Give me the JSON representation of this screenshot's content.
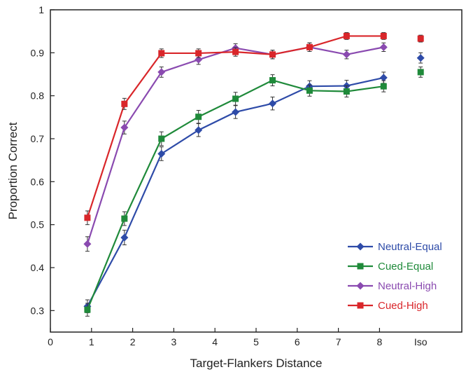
{
  "chart_data": {
    "type": "line",
    "xlabel": "Target-Flankers Distance",
    "ylabel": "Proportion Correct",
    "xlim": [
      0,
      10
    ],
    "ylim": [
      0.25,
      1.0
    ],
    "x_ticks": [
      0,
      1,
      2,
      3,
      4,
      5,
      6,
      7,
      8
    ],
    "x_tick_labels": [
      "0",
      "1",
      "2",
      "3",
      "4",
      "5",
      "6",
      "7",
      "8"
    ],
    "extra_tick": {
      "x": 9,
      "label": "Iso"
    },
    "y_ticks": [
      0.3,
      0.4,
      0.5,
      0.6,
      0.7,
      0.8,
      0.9,
      1.0
    ],
    "y_tick_labels": [
      "0.3",
      "0.4",
      "0.5",
      "0.6",
      "0.7",
      "0.8",
      "0.9",
      "1"
    ],
    "grid": false,
    "legend_position": "bottom-right",
    "x": [
      0.9,
      1.8,
      2.7,
      3.6,
      4.5,
      5.4,
      6.3,
      7.2,
      8.1
    ],
    "iso_x": 9.0,
    "series": [
      {
        "name": "Neutral-Equal",
        "color": "#2e4ba8",
        "marker": "diamond",
        "values": [
          0.31,
          0.47,
          0.665,
          0.72,
          0.762,
          0.782,
          0.822,
          0.823,
          0.842
        ],
        "errors": [
          0.015,
          0.017,
          0.016,
          0.015,
          0.015,
          0.015,
          0.013,
          0.013,
          0.013
        ],
        "iso": 0.888,
        "iso_error": 0.012
      },
      {
        "name": "Cued-Equal",
        "color": "#1f8a3a",
        "marker": "square",
        "values": [
          0.302,
          0.514,
          0.7,
          0.751,
          0.793,
          0.836,
          0.812,
          0.81,
          0.822
        ],
        "errors": [
          0.015,
          0.016,
          0.016,
          0.015,
          0.015,
          0.013,
          0.013,
          0.013,
          0.013
        ],
        "iso": 0.855,
        "iso_error": 0.012
      },
      {
        "name": "Neutral-High",
        "color": "#8a4ab0",
        "marker": "diamond",
        "values": [
          0.455,
          0.726,
          0.855,
          0.884,
          0.911,
          0.896,
          0.913,
          0.896,
          0.913
        ],
        "errors": [
          0.017,
          0.015,
          0.012,
          0.011,
          0.01,
          0.01,
          0.01,
          0.01,
          0.01
        ],
        "iso": null,
        "iso_error": null
      },
      {
        "name": "Cued-High",
        "color": "#d9262a",
        "marker": "square",
        "values": [
          0.516,
          0.781,
          0.899,
          0.899,
          0.902,
          0.896,
          0.913,
          0.939,
          0.939
        ],
        "errors": [
          0.016,
          0.013,
          0.01,
          0.01,
          0.01,
          0.01,
          0.01,
          0.008,
          0.008
        ],
        "iso": 0.933,
        "iso_error": 0.008
      }
    ]
  }
}
